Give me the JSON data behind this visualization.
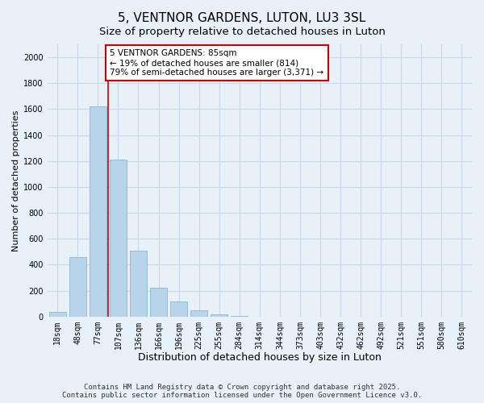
{
  "title": "5, VENTNOR GARDENS, LUTON, LU3 3SL",
  "subtitle": "Size of property relative to detached houses in Luton",
  "xlabel": "Distribution of detached houses by size in Luton",
  "ylabel": "Number of detached properties",
  "bar_labels": [
    "18sqm",
    "48sqm",
    "77sqm",
    "107sqm",
    "136sqm",
    "166sqm",
    "196sqm",
    "225sqm",
    "255sqm",
    "284sqm",
    "314sqm",
    "344sqm",
    "373sqm",
    "403sqm",
    "432sqm",
    "462sqm",
    "492sqm",
    "521sqm",
    "551sqm",
    "580sqm",
    "610sqm"
  ],
  "bar_values": [
    35,
    460,
    1620,
    1210,
    510,
    220,
    115,
    45,
    20,
    5,
    0,
    0,
    0,
    0,
    0,
    0,
    0,
    0,
    0,
    0,
    0
  ],
  "bar_color": "#b8d4ea",
  "bar_edge_color": "#7aaed0",
  "vline_x": 2.5,
  "vline_color": "#cc0000",
  "annotation_text": "5 VENTNOR GARDENS: 85sqm\n← 19% of detached houses are smaller (814)\n79% of semi-detached houses are larger (3,371) →",
  "annotation_box_color": "white",
  "annotation_box_edge": "#cc0000",
  "ylim": [
    0,
    2100
  ],
  "yticks": [
    0,
    200,
    400,
    600,
    800,
    1000,
    1200,
    1400,
    1600,
    1800,
    2000
  ],
  "background_color": "#e8f0f8",
  "plot_bg_color": "#e8f0f8",
  "grid_color": "#c8d8e8",
  "footer_line1": "Contains HM Land Registry data © Crown copyright and database right 2025.",
  "footer_line2": "Contains public sector information licensed under the Open Government Licence v3.0.",
  "title_fontsize": 11,
  "subtitle_fontsize": 9.5,
  "xlabel_fontsize": 9,
  "ylabel_fontsize": 8,
  "tick_fontsize": 7,
  "footer_fontsize": 6.5,
  "annot_fontsize": 7.5
}
